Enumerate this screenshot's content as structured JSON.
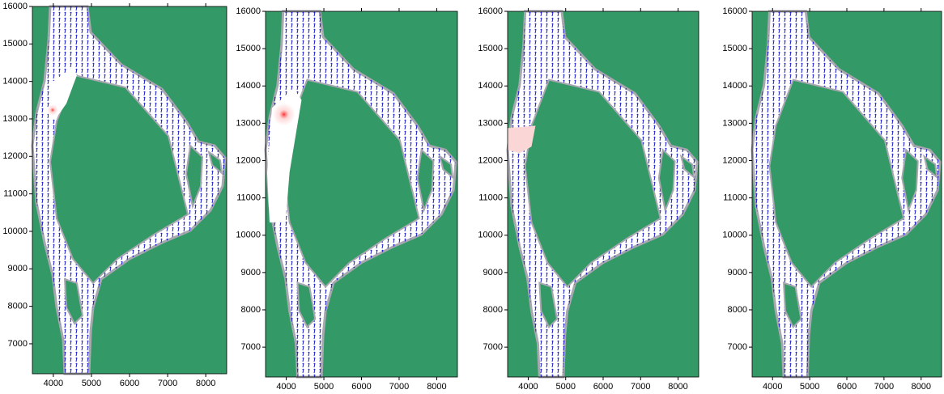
{
  "chart_data": [
    {
      "type": "map",
      "xlim": [
        3450,
        8550
      ],
      "ylim": [
        6200,
        16000
      ],
      "xticks": [
        4000,
        5000,
        6000,
        7000,
        8000
      ],
      "yticks": [
        7000,
        8000,
        9000,
        10000,
        11000,
        12000,
        13000,
        14000,
        15000,
        16000
      ]
    },
    {
      "type": "map",
      "xlim": [
        3450,
        8550
      ],
      "ylim": [
        6200,
        16000
      ],
      "xticks": [
        4000,
        5000,
        6000,
        7000,
        8000
      ],
      "yticks": [
        7000,
        8000,
        9000,
        10000,
        11000,
        12000,
        13000,
        14000,
        15000,
        16000
      ]
    },
    {
      "type": "map",
      "xlim": [
        3450,
        8550
      ],
      "ylim": [
        6200,
        16000
      ],
      "xticks": [
        4000,
        5000,
        6000,
        7000,
        8000
      ],
      "yticks": [
        7000,
        8000,
        9000,
        10000,
        11000,
        12000,
        13000,
        14000,
        15000,
        16000
      ]
    },
    {
      "type": "map",
      "xlim": [
        3450,
        8550
      ],
      "ylim": [
        6200,
        16000
      ],
      "xticks": [
        4000,
        5000,
        6000,
        7000,
        8000
      ],
      "yticks": [
        7000,
        8000,
        9000,
        10000,
        11000,
        12000,
        13000,
        14000,
        15000,
        16000
      ]
    }
  ]
}
